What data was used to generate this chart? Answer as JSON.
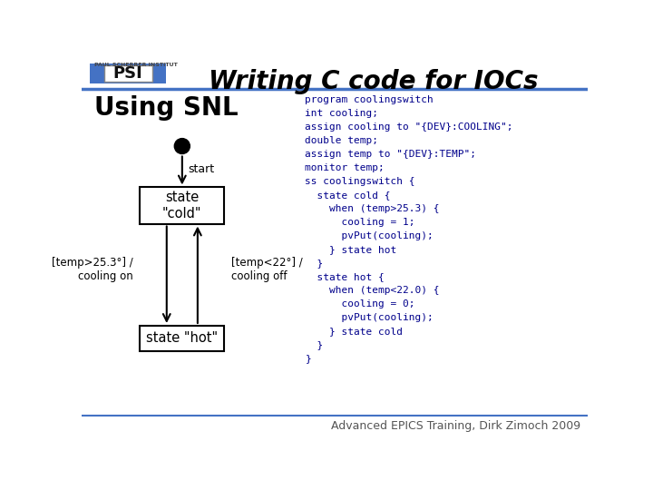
{
  "title": "Writing C code for IOCs",
  "title_fontsize": 20,
  "background_color": "#ffffff",
  "header_line_color": "#4472c4",
  "snl_label": "Using SNL",
  "snl_label_fontsize": 20,
  "state_cold_label": "state\n\"cold\"",
  "state_hot_label": "state \"hot\"",
  "start_label": "start",
  "left_arrow_label": "[temp>25.3°] /\ncooling on",
  "right_arrow_label": "[temp<22°] /\ncooling off",
  "code_lines": [
    "program coolingswitch",
    "int cooling;",
    "assign cooling to \"{DEV}:COOLING\";",
    "double temp;",
    "assign temp to \"{DEV}:TEMP\";",
    "monitor temp;",
    "ss coolingswitch {",
    "  state cold {",
    "    when (temp>25.3) {",
    "      cooling = 1;",
    "      pvPut(cooling);",
    "    } state hot",
    "  }",
    "  state hot {",
    "    when (temp<22.0) {",
    "      cooling = 0;",
    "      pvPut(cooling);",
    "    } state cold",
    "  }",
    "}"
  ],
  "code_fontsize": 8.0,
  "code_color": "#00008b",
  "footer_text": "Advanced EPICS Training, Dirk Zimoch 2009",
  "footer_fontsize": 9,
  "box_color": "#000000",
  "arrow_color": "#000000",
  "dot_color": "#000000",
  "logo_blue": "#4472c4",
  "logo_gray": "#888888"
}
